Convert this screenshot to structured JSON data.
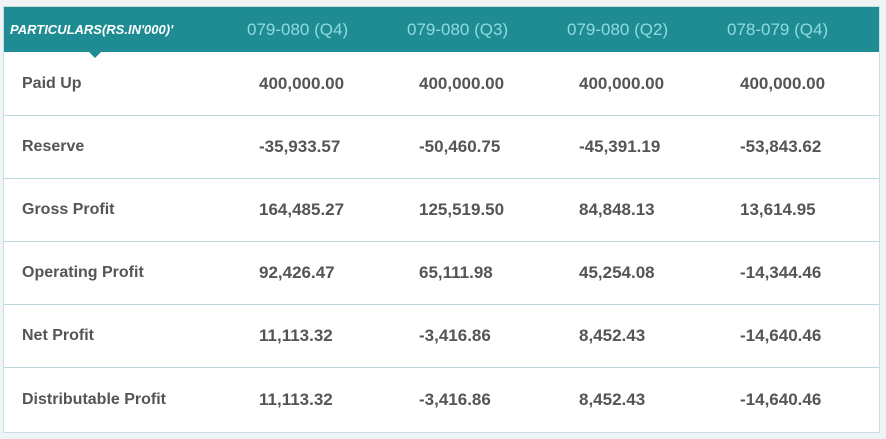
{
  "header": {
    "particulars": "PARTICULARS(RS.IN'000)'",
    "columns": [
      "079-080 (Q4)",
      "079-080 (Q3)",
      "079-080 (Q2)",
      "078-079 (Q4)"
    ]
  },
  "rows": [
    {
      "label": "Paid Up",
      "values": [
        "400,000.00",
        "400,000.00",
        "400,000.00",
        "400,000.00"
      ]
    },
    {
      "label": "Reserve",
      "values": [
        "-35,933.57",
        "-50,460.75",
        "-45,391.19",
        "-53,843.62"
      ]
    },
    {
      "label": "Gross Profit",
      "values": [
        "164,485.27",
        "125,519.50",
        "84,848.13",
        "13,614.95"
      ]
    },
    {
      "label": "Operating Profit",
      "values": [
        "92,426.47",
        "65,111.98",
        "45,254.08",
        "-14,344.46"
      ]
    },
    {
      "label": "Net Profit",
      "values": [
        "11,113.32",
        "-3,416.86",
        "8,452.43",
        "-14,640.46"
      ]
    },
    {
      "label": "Distributable Profit",
      "values": [
        "11,113.32",
        "-3,416.86",
        "8,452.43",
        "-14,640.46"
      ]
    }
  ],
  "colors": {
    "header_bg": "#1f8c94",
    "header_text_active": "#ffffff",
    "header_text": "#8ddbe0",
    "cell_text": "#555555",
    "row_border": "#b9dadd"
  }
}
